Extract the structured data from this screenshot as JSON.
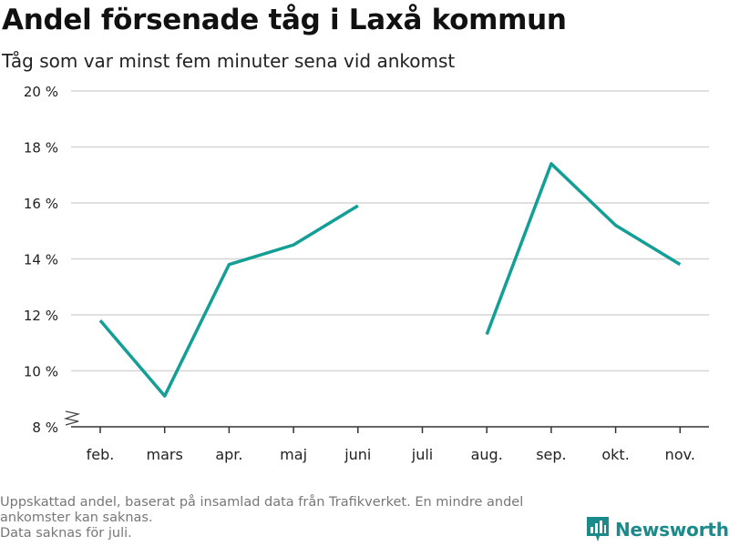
{
  "header": {
    "title": "Andel försenade tåg i Laxå kommun",
    "subtitle": "Tåg som var minst fem minuter sena vid ankomst"
  },
  "chart_data": {
    "type": "line",
    "title": "Andel försenade tåg i Laxå kommun",
    "subtitle": "Tåg som var minst fem minuter sena vid ankomst",
    "xlabel": "",
    "ylabel": "",
    "categories": [
      "feb.",
      "mars",
      "apr.",
      "maj",
      "juni",
      "juli",
      "aug.",
      "sep.",
      "okt.",
      "nov."
    ],
    "series": [
      {
        "values": [
          11.8,
          9.1,
          13.8,
          14.5,
          15.9,
          null,
          11.3,
          17.4,
          15.2,
          13.8
        ]
      }
    ],
    "ylim": [
      8,
      20
    ],
    "yticks": [
      8,
      10,
      12,
      14,
      16,
      18,
      20
    ],
    "ytick_labels": [
      "8 %",
      "10 %",
      "12 %",
      "14 %",
      "16 %",
      "18 %",
      "20 %"
    ],
    "y_axis_break": true,
    "grid": true,
    "colors": {
      "line": "#139e96",
      "grid": "#d6d6d6",
      "axis": "#333333"
    }
  },
  "footer": {
    "note_line1": "Uppskattad andel, baserat på insamlad data från Trafikverket. En mindre andel ankomster kan saknas.",
    "note_line2": "Data saknas för juli."
  },
  "brand": {
    "name": "Newsworthy",
    "icon": "newsworthy-logo-icon",
    "color": "#1a8a8a"
  }
}
